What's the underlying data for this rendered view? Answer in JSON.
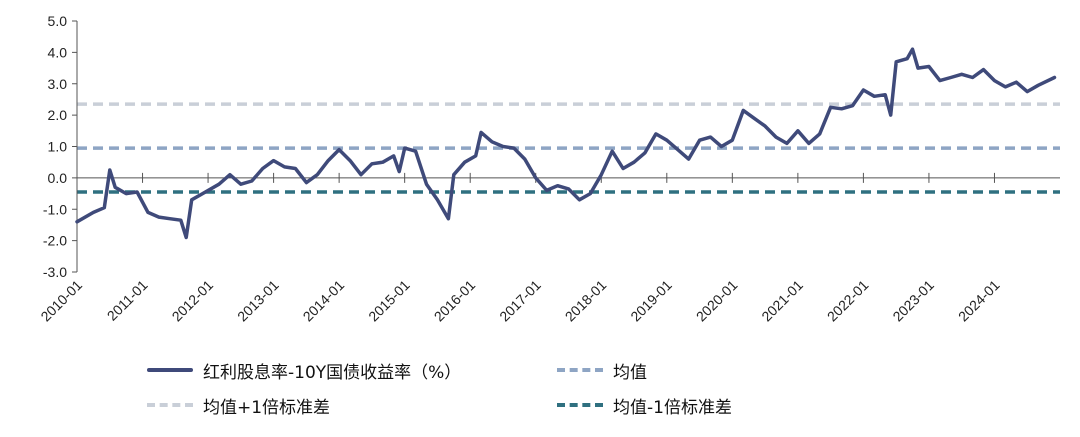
{
  "chart_data": {
    "type": "line",
    "title": "",
    "xlabel": "",
    "ylabel": "",
    "ylim": [
      -3.0,
      5.0
    ],
    "y_ticks": [
      "5.0",
      "4.0",
      "3.0",
      "2.0",
      "1.0",
      "0.0",
      "-1.0",
      "-2.0",
      "-3.0"
    ],
    "y_tick_values": [
      5,
      4,
      3,
      2,
      1,
      0,
      -1,
      -2,
      -3
    ],
    "x_ticks": [
      "2010-01",
      "2011-01",
      "2012-01",
      "2013-01",
      "2014-01",
      "2015-01",
      "2016-01",
      "2017-01",
      "2018-01",
      "2019-01",
      "2020-01",
      "2021-01",
      "2022-01",
      "2023-01",
      "2024-01"
    ],
    "x_range": [
      "2010-01",
      "2024-12"
    ],
    "grid": false,
    "legend_position": "bottom",
    "series": [
      {
        "name": "红利股息率-10Y国债收益率（%）",
        "color": "#3f4a7a",
        "style": "solid",
        "points": [
          [
            "2010-01",
            -1.4
          ],
          [
            "2010-04",
            -1.1
          ],
          [
            "2010-06",
            -0.95
          ],
          [
            "2010-07",
            0.25
          ],
          [
            "2010-08",
            -0.3
          ],
          [
            "2010-10",
            -0.5
          ],
          [
            "2010-12",
            -0.45
          ],
          [
            "2011-02",
            -1.1
          ],
          [
            "2011-04",
            -1.25
          ],
          [
            "2011-06",
            -1.3
          ],
          [
            "2011-08",
            -1.35
          ],
          [
            "2011-09",
            -1.9
          ],
          [
            "2011-10",
            -0.7
          ],
          [
            "2011-12",
            -0.5
          ],
          [
            "2012-03",
            -0.2
          ],
          [
            "2012-05",
            0.1
          ],
          [
            "2012-07",
            -0.2
          ],
          [
            "2012-09",
            -0.1
          ],
          [
            "2012-11",
            0.3
          ],
          [
            "2013-01",
            0.55
          ],
          [
            "2013-03",
            0.35
          ],
          [
            "2013-05",
            0.3
          ],
          [
            "2013-07",
            -0.15
          ],
          [
            "2013-09",
            0.1
          ],
          [
            "2013-11",
            0.55
          ],
          [
            "2014-01",
            0.9
          ],
          [
            "2014-03",
            0.55
          ],
          [
            "2014-05",
            0.1
          ],
          [
            "2014-07",
            0.45
          ],
          [
            "2014-09",
            0.5
          ],
          [
            "2014-11",
            0.7
          ],
          [
            "2014-12",
            0.2
          ],
          [
            "2015-01",
            0.95
          ],
          [
            "2015-03",
            0.85
          ],
          [
            "2015-05",
            -0.2
          ],
          [
            "2015-07",
            -0.7
          ],
          [
            "2015-09",
            -1.3
          ],
          [
            "2015-10",
            0.1
          ],
          [
            "2015-12",
            0.5
          ],
          [
            "2016-02",
            0.7
          ],
          [
            "2016-03",
            1.45
          ],
          [
            "2016-05",
            1.15
          ],
          [
            "2016-07",
            1.0
          ],
          [
            "2016-09",
            0.95
          ],
          [
            "2016-11",
            0.6
          ],
          [
            "2017-01",
            0.0
          ],
          [
            "2017-03",
            -0.4
          ],
          [
            "2017-05",
            -0.25
          ],
          [
            "2017-07",
            -0.35
          ],
          [
            "2017-09",
            -0.7
          ],
          [
            "2017-11",
            -0.5
          ],
          [
            "2018-01",
            0.1
          ],
          [
            "2018-03",
            0.85
          ],
          [
            "2018-05",
            0.3
          ],
          [
            "2018-07",
            0.5
          ],
          [
            "2018-09",
            0.8
          ],
          [
            "2018-11",
            1.4
          ],
          [
            "2019-01",
            1.2
          ],
          [
            "2019-03",
            0.9
          ],
          [
            "2019-05",
            0.6
          ],
          [
            "2019-07",
            1.2
          ],
          [
            "2019-09",
            1.3
          ],
          [
            "2019-11",
            1.0
          ],
          [
            "2020-01",
            1.2
          ],
          [
            "2020-03",
            2.15
          ],
          [
            "2020-05",
            1.9
          ],
          [
            "2020-07",
            1.65
          ],
          [
            "2020-09",
            1.3
          ],
          [
            "2020-11",
            1.1
          ],
          [
            "2021-01",
            1.5
          ],
          [
            "2021-03",
            1.1
          ],
          [
            "2021-05",
            1.4
          ],
          [
            "2021-07",
            2.25
          ],
          [
            "2021-09",
            2.2
          ],
          [
            "2021-11",
            2.3
          ],
          [
            "2022-01",
            2.8
          ],
          [
            "2022-03",
            2.6
          ],
          [
            "2022-05",
            2.65
          ],
          [
            "2022-06",
            2.0
          ],
          [
            "2022-07",
            3.7
          ],
          [
            "2022-09",
            3.8
          ],
          [
            "2022-10",
            4.1
          ],
          [
            "2022-11",
            3.5
          ],
          [
            "2023-01",
            3.55
          ],
          [
            "2023-03",
            3.1
          ],
          [
            "2023-05",
            3.2
          ],
          [
            "2023-07",
            3.3
          ],
          [
            "2023-09",
            3.2
          ],
          [
            "2023-11",
            3.45
          ],
          [
            "2024-01",
            3.1
          ],
          [
            "2024-03",
            2.9
          ],
          [
            "2024-05",
            3.05
          ],
          [
            "2024-07",
            2.75
          ],
          [
            "2024-09",
            2.95
          ],
          [
            "2024-12",
            3.2
          ]
        ]
      },
      {
        "name": "均值",
        "color": "#8ea5c4",
        "style": "dashed",
        "constant": 0.95
      },
      {
        "name": "均值+1倍标准差",
        "color": "#c9cfd8",
        "style": "dashed",
        "constant": 2.35
      },
      {
        "name": "均值-1倍标准差",
        "color": "#2f7080",
        "style": "dashed",
        "constant": -0.45
      }
    ]
  }
}
